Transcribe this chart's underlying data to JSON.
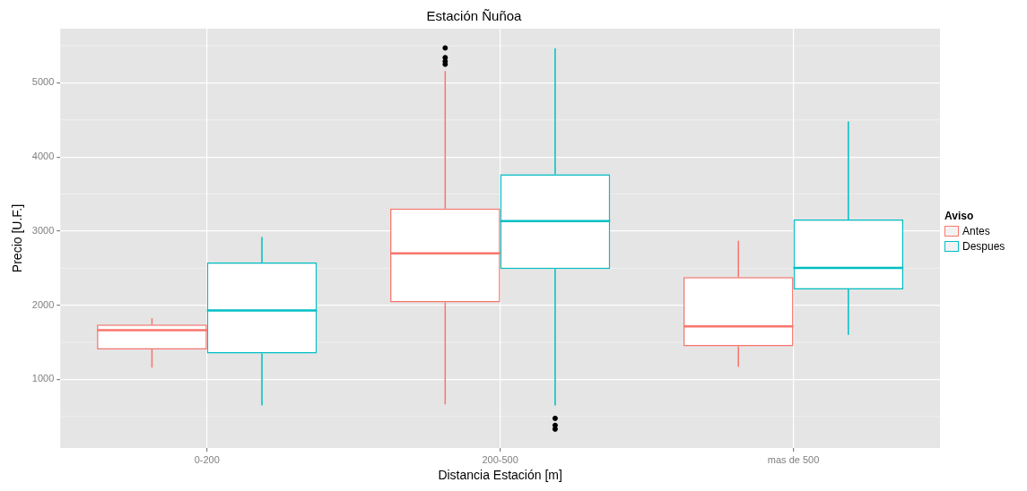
{
  "chart_data": {
    "type": "box",
    "title": "Estación Ñuñoa",
    "xlabel": "Distancia Estación [m]",
    "ylabel": "Precio [U.F.]",
    "legend_title": "Aviso",
    "legend": "right",
    "grid": true,
    "categories": [
      "0-200",
      "200-500",
      "mas de 500"
    ],
    "ylim": [
      75,
      5730
    ],
    "yticks": [
      1000,
      2000,
      3000,
      4000,
      5000
    ],
    "series": [
      {
        "name": "Antes",
        "color": "#f8766d",
        "boxes": [
          {
            "low": 1160,
            "q1": 1405,
            "median": 1665,
            "q3": 1740,
            "high": 1825
          },
          {
            "low": 665,
            "q1": 2040,
            "median": 2700,
            "q3": 3305,
            "high": 5160,
            "outliers": [
              5470,
              5340,
              5290,
              5250
            ]
          },
          {
            "low": 1170,
            "q1": 1445,
            "median": 1715,
            "q3": 2380,
            "high": 2870
          }
        ]
      },
      {
        "name": "Despues",
        "color": "#00bfc4",
        "boxes": [
          {
            "low": 650,
            "q1": 1350,
            "median": 1930,
            "q3": 2575,
            "high": 2920
          },
          {
            "low": 650,
            "q1": 2490,
            "median": 3135,
            "q3": 3765,
            "high": 5465,
            "outliers": [
              475,
              380,
              330
            ]
          },
          {
            "low": 1600,
            "q1": 2215,
            "median": 2505,
            "q3": 3155,
            "high": 4480
          }
        ]
      }
    ]
  }
}
